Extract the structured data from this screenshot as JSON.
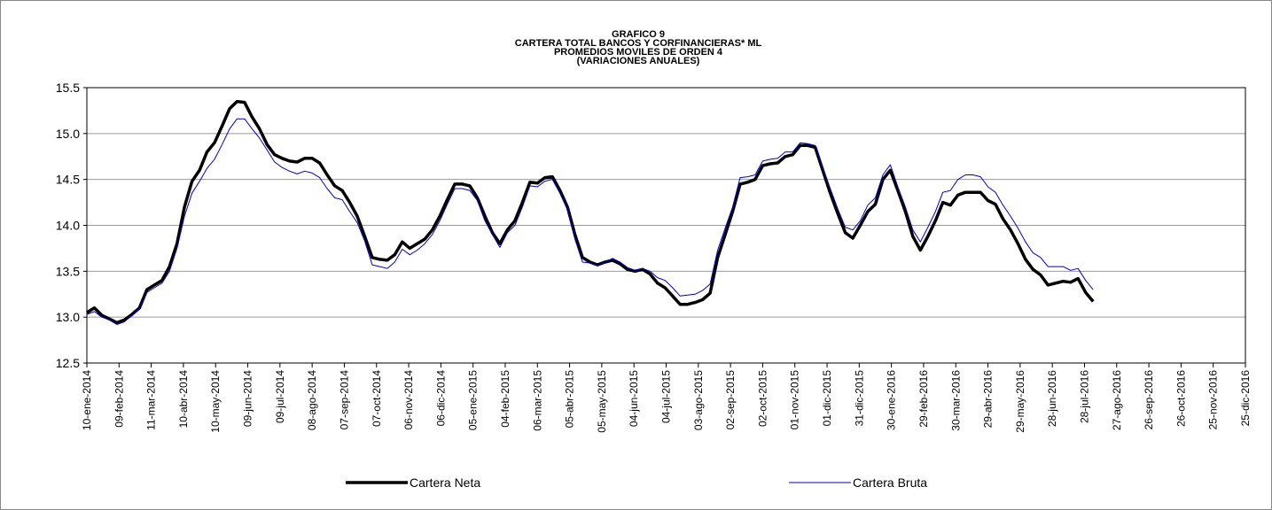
{
  "chart_data": {
    "type": "line",
    "title": [
      "GRAFICO 9",
      "CARTERA TOTAL BANCOS Y CORFINANCIERAS* ML",
      "PROMEDIOS MOVILES DE ORDEN 4",
      "(VARIACIONES ANUALES)"
    ],
    "x": [
      "2014-01-10",
      "2014-01-17",
      "2014-01-24",
      "2014-01-31",
      "2014-02-07",
      "2014-02-14",
      "2014-02-21",
      "2014-02-28",
      "2014-03-07",
      "2014-03-14",
      "2014-03-21",
      "2014-03-28",
      "2014-04-04",
      "2014-04-11",
      "2014-04-18",
      "2014-04-25",
      "2014-05-02",
      "2014-05-09",
      "2014-05-16",
      "2014-05-23",
      "2014-05-30",
      "2014-06-06",
      "2014-06-13",
      "2014-06-20",
      "2014-06-27",
      "2014-07-04",
      "2014-07-11",
      "2014-07-18",
      "2014-07-25",
      "2014-08-01",
      "2014-08-08",
      "2014-08-15",
      "2014-08-22",
      "2014-08-29",
      "2014-09-05",
      "2014-09-12",
      "2014-09-19",
      "2014-09-26",
      "2014-10-03",
      "2014-10-10",
      "2014-10-17",
      "2014-10-24",
      "2014-10-31",
      "2014-11-07",
      "2014-11-14",
      "2014-11-21",
      "2014-11-28",
      "2014-12-05",
      "2014-12-12",
      "2014-12-19",
      "2014-12-26",
      "2015-01-02",
      "2015-01-09",
      "2015-01-16",
      "2015-01-23",
      "2015-01-30",
      "2015-02-06",
      "2015-02-13",
      "2015-02-20",
      "2015-02-27",
      "2015-03-06",
      "2015-03-13",
      "2015-03-20",
      "2015-03-27",
      "2015-04-03",
      "2015-04-10",
      "2015-04-17",
      "2015-04-24",
      "2015-05-01",
      "2015-05-08",
      "2015-05-15",
      "2015-05-22",
      "2015-05-29",
      "2015-06-05",
      "2015-06-12",
      "2015-06-19",
      "2015-06-26",
      "2015-07-03",
      "2015-07-10",
      "2015-07-17",
      "2015-07-24",
      "2015-07-31",
      "2015-08-07",
      "2015-08-14",
      "2015-08-21",
      "2015-08-28",
      "2015-09-04",
      "2015-09-11",
      "2015-09-18",
      "2015-09-25",
      "2015-10-02",
      "2015-10-09",
      "2015-10-16",
      "2015-10-23",
      "2015-10-30",
      "2015-11-06",
      "2015-11-13",
      "2015-11-20",
      "2015-11-27",
      "2015-12-04",
      "2015-12-11",
      "2015-12-18",
      "2015-12-25",
      "2016-01-01",
      "2016-01-08",
      "2016-01-15",
      "2016-01-22",
      "2016-01-29",
      "2016-02-05",
      "2016-02-12",
      "2016-02-19",
      "2016-02-26",
      "2016-03-04",
      "2016-03-11",
      "2016-03-18",
      "2016-03-25",
      "2016-04-01",
      "2016-04-08",
      "2016-04-15",
      "2016-04-22",
      "2016-04-29",
      "2016-05-06",
      "2016-05-13",
      "2016-05-20",
      "2016-05-27",
      "2016-06-03",
      "2016-06-10",
      "2016-06-17",
      "2016-06-24",
      "2016-07-01",
      "2016-07-08",
      "2016-07-15",
      "2016-07-22",
      "2016-07-29",
      "2016-08-05"
    ],
    "series": [
      {
        "name": "Cartera Neta",
        "color": "#000000",
        "width": 3.5,
        "values": [
          13.05,
          13.1,
          13.02,
          12.98,
          12.94,
          12.97,
          13.03,
          13.1,
          13.3,
          13.35,
          13.4,
          13.55,
          13.8,
          14.2,
          14.48,
          14.6,
          14.8,
          14.9,
          15.08,
          15.27,
          15.35,
          15.34,
          15.18,
          15.05,
          14.88,
          14.77,
          14.73,
          14.7,
          14.69,
          14.73,
          14.73,
          14.68,
          14.55,
          14.43,
          14.38,
          14.25,
          14.1,
          13.88,
          13.65,
          13.63,
          13.62,
          13.68,
          13.82,
          13.75,
          13.8,
          13.85,
          13.95,
          14.1,
          14.28,
          14.45,
          14.45,
          14.43,
          14.3,
          14.1,
          13.92,
          13.8,
          13.95,
          14.05,
          14.25,
          14.47,
          14.46,
          14.52,
          14.53,
          14.38,
          14.2,
          13.9,
          13.65,
          13.6,
          13.57,
          13.6,
          13.62,
          13.58,
          13.52,
          13.5,
          13.52,
          13.47,
          13.37,
          13.32,
          13.23,
          13.14,
          13.14,
          13.16,
          13.19,
          13.26,
          13.65,
          13.9,
          14.15,
          14.45,
          14.47,
          14.5,
          14.65,
          14.67,
          14.68,
          14.75,
          14.77,
          14.87,
          14.87,
          14.85,
          14.6,
          14.35,
          14.13,
          13.92,
          13.86,
          14.0,
          14.15,
          14.23,
          14.5,
          14.6,
          14.38,
          14.15,
          13.88,
          13.73,
          13.88,
          14.05,
          14.25,
          14.22,
          14.33,
          14.36,
          14.36,
          14.36,
          14.27,
          14.23,
          14.07,
          13.95,
          13.8,
          13.63,
          13.52,
          13.46,
          13.35,
          13.37,
          13.39,
          13.38,
          13.42,
          13.27,
          13.17
        ]
      },
      {
        "name": "Cartera Bruta",
        "color": "#0000cc",
        "width": 1,
        "values": [
          13.03,
          13.06,
          13.0,
          12.97,
          12.92,
          12.95,
          13.02,
          13.1,
          13.27,
          13.32,
          13.37,
          13.5,
          13.75,
          14.1,
          14.35,
          14.48,
          14.62,
          14.72,
          14.88,
          15.05,
          15.16,
          15.16,
          15.05,
          14.95,
          14.82,
          14.69,
          14.63,
          14.59,
          14.56,
          14.59,
          14.57,
          14.52,
          14.4,
          14.3,
          14.28,
          14.15,
          14.03,
          13.83,
          13.57,
          13.55,
          13.53,
          13.6,
          13.74,
          13.68,
          13.73,
          13.8,
          13.9,
          14.05,
          14.23,
          14.4,
          14.4,
          14.38,
          14.27,
          14.05,
          13.9,
          13.76,
          13.92,
          14.0,
          14.2,
          14.43,
          14.42,
          14.48,
          14.5,
          14.35,
          14.17,
          13.85,
          13.6,
          13.59,
          13.56,
          13.6,
          13.64,
          13.6,
          13.54,
          13.51,
          13.53,
          13.5,
          13.43,
          13.4,
          13.32,
          13.23,
          13.24,
          13.25,
          13.29,
          13.36,
          13.73,
          13.97,
          14.2,
          14.52,
          14.53,
          14.55,
          14.7,
          14.72,
          14.73,
          14.8,
          14.8,
          14.9,
          14.89,
          14.87,
          14.63,
          14.4,
          14.18,
          13.98,
          13.95,
          14.05,
          14.22,
          14.3,
          14.55,
          14.66,
          14.42,
          14.2,
          13.95,
          13.82,
          13.98,
          14.15,
          14.36,
          14.38,
          14.5,
          14.55,
          14.55,
          14.53,
          14.42,
          14.36,
          14.22,
          14.1,
          13.97,
          13.82,
          13.7,
          13.65,
          13.55,
          13.55,
          13.55,
          13.51,
          13.53,
          13.4,
          13.3
        ]
      }
    ],
    "ylim": [
      12.5,
      15.5
    ],
    "yticks": [
      12.5,
      {
        "value": 13,
        "label": "13.0"
      },
      13.5,
      {
        "value": 14,
        "label": "14.0"
      },
      14.5,
      {
        "value": 15,
        "label": "15.0"
      },
      15.5
    ],
    "xlim": [
      "2014-01-10",
      "2016-12-25"
    ],
    "xticks": [
      {
        "value": "2014-01-10",
        "label": "10-ene-2014"
      },
      {
        "value": "2014-02-09",
        "label": "09-feb-2014"
      },
      {
        "value": "2014-03-11",
        "label": "11-mar-2014"
      },
      {
        "value": "2014-04-10",
        "label": "10-abr-2014"
      },
      {
        "value": "2014-05-10",
        "label": "10-may-2014"
      },
      {
        "value": "2014-06-09",
        "label": "09-jun-2014"
      },
      {
        "value": "2014-07-09",
        "label": "09-jul-2014"
      },
      {
        "value": "2014-08-08",
        "label": "08-ago-2014"
      },
      {
        "value": "2014-09-07",
        "label": "07-sep-2014"
      },
      {
        "value": "2014-10-07",
        "label": "07-oct-2014"
      },
      {
        "value": "2014-11-06",
        "label": "06-nov-2014"
      },
      {
        "value": "2014-12-06",
        "label": "06-dic-2014"
      },
      {
        "value": "2015-01-05",
        "label": "05-ene-2015"
      },
      {
        "value": "2015-02-04",
        "label": "04-feb-2015"
      },
      {
        "value": "2015-03-06",
        "label": "06-mar-2015"
      },
      {
        "value": "2015-04-05",
        "label": "05-abr-2015"
      },
      {
        "value": "2015-05-05",
        "label": "05-may-2015"
      },
      {
        "value": "2015-06-04",
        "label": "04-jun-2015"
      },
      {
        "value": "2015-07-04",
        "label": "04-jul-2015"
      },
      {
        "value": "2015-08-03",
        "label": "03-ago-2015"
      },
      {
        "value": "2015-09-02",
        "label": "02-sep-2015"
      },
      {
        "value": "2015-10-02",
        "label": "02-oct-2015"
      },
      {
        "value": "2015-11-01",
        "label": "01-nov-2015"
      },
      {
        "value": "2015-12-01",
        "label": "01-dic-2015"
      },
      {
        "value": "2015-12-31",
        "label": "31-dic-2015"
      },
      {
        "value": "2016-01-30",
        "label": "30-ene-2016"
      },
      {
        "value": "2016-02-29",
        "label": "29-feb-2016"
      },
      {
        "value": "2016-03-30",
        "label": "30-mar-2016"
      },
      {
        "value": "2016-04-29",
        "label": "29-abr-2016"
      },
      {
        "value": "2016-05-29",
        "label": "29-may-2016"
      },
      {
        "value": "2016-06-28",
        "label": "28-jun-2016"
      },
      {
        "value": "2016-07-28",
        "label": "28-jul-2016"
      },
      {
        "value": "2016-08-27",
        "label": "27-ago-2016"
      },
      {
        "value": "2016-09-26",
        "label": "26-sep-2016"
      },
      {
        "value": "2016-10-26",
        "label": "26-oct-2016"
      },
      {
        "value": "2016-11-25",
        "label": "25-nov-2016"
      },
      {
        "value": "2016-12-25",
        "label": "25-dic-2016"
      }
    ],
    "grid": true,
    "legend": "bottom"
  }
}
